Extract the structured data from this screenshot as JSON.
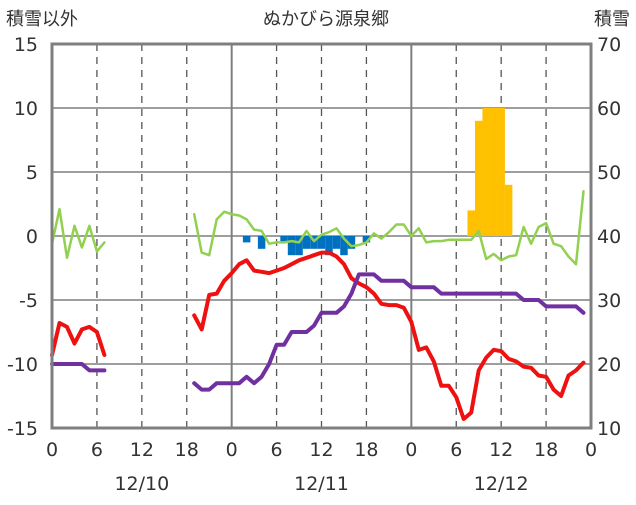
{
  "chart_data": {
    "type": "line",
    "title": "ぬかびら源泉郷",
    "ylabel_left": "積雪以外",
    "ylabel_right": "積雪",
    "ylim_left": [
      -15,
      15
    ],
    "ylim_right": [
      10,
      70
    ],
    "yticks_left": [
      "-15",
      "-10",
      "-5",
      "0",
      "5",
      "10",
      "15"
    ],
    "yticks_right": [
      "10",
      "20",
      "30",
      "40",
      "50",
      "60",
      "70"
    ],
    "xlim": [
      0,
      72
    ],
    "xtick_labels": [
      "0",
      "6",
      "12",
      "18",
      "0",
      "6",
      "12",
      "18",
      "0",
      "6",
      "12",
      "18",
      "0"
    ],
    "date_labels": [
      "12/10",
      "12/11",
      "12/12"
    ],
    "colors": {
      "temperature": "#ee1111",
      "snow_depth": "#7030a0",
      "wind": "#92d050",
      "precipitation": "#ffc000",
      "negative_bars": "#0070c0"
    },
    "series": [
      {
        "key": "temperature",
        "axis": "left",
        "segments": [
          [
            [
              0,
              -9.3
            ],
            [
              1,
              -6.8
            ],
            [
              2,
              -7.1
            ],
            [
              3,
              -8.4
            ],
            [
              4,
              -7.3
            ],
            [
              5,
              -7.1
            ],
            [
              6,
              -7.5
            ],
            [
              7,
              -9.3
            ]
          ],
          [
            [
              19,
              -6.2
            ],
            [
              20,
              -7.3
            ],
            [
              21,
              -4.6
            ],
            [
              22,
              -4.5
            ],
            [
              23,
              -3.5
            ],
            [
              24,
              -2.9
            ],
            [
              25,
              -2.2
            ],
            [
              26,
              -1.9
            ],
            [
              27,
              -2.7
            ],
            [
              28,
              -2.8
            ],
            [
              29,
              -2.9
            ],
            [
              30,
              -2.7
            ],
            [
              31,
              -2.5
            ],
            [
              32,
              -2.2
            ],
            [
              33,
              -1.9
            ],
            [
              34,
              -1.7
            ],
            [
              35,
              -1.5
            ],
            [
              36,
              -1.3
            ],
            [
              37,
              -1.3
            ],
            [
              38,
              -1.6
            ],
            [
              39,
              -2.2
            ],
            [
              40,
              -3.3
            ],
            [
              41,
              -3.7
            ],
            [
              42,
              -4.0
            ],
            [
              43,
              -4.5
            ],
            [
              44,
              -5.3
            ],
            [
              45,
              -5.4
            ],
            [
              46,
              -5.4
            ],
            [
              47,
              -5.6
            ],
            [
              48,
              -6.7
            ],
            [
              49,
              -8.9
            ],
            [
              50,
              -8.7
            ],
            [
              51,
              -9.8
            ],
            [
              52,
              -11.7
            ],
            [
              53,
              -11.7
            ],
            [
              54,
              -12.6
            ],
            [
              55,
              -14.3
            ],
            [
              56,
              -13.8
            ],
            [
              57,
              -10.5
            ],
            [
              58,
              -9.5
            ],
            [
              59,
              -8.9
            ],
            [
              60,
              -9.0
            ],
            [
              61,
              -9.6
            ],
            [
              62,
              -9.8
            ],
            [
              63,
              -10.2
            ],
            [
              64,
              -10.3
            ],
            [
              65,
              -10.9
            ],
            [
              66,
              -11.0
            ],
            [
              67,
              -12.0
            ],
            [
              68,
              -12.5
            ],
            [
              69,
              -10.9
            ],
            [
              70,
              -10.5
            ],
            [
              71,
              -9.9
            ]
          ]
        ]
      },
      {
        "key": "snow_depth",
        "axis": "right",
        "segments": [
          [
            [
              0,
              20
            ],
            [
              1,
              20
            ],
            [
              2,
              20
            ],
            [
              3,
              20
            ],
            [
              4,
              20
            ],
            [
              5,
              19
            ],
            [
              6,
              19
            ],
            [
              7,
              19
            ]
          ],
          [
            [
              19,
              17
            ],
            [
              20,
              16
            ],
            [
              21,
              16
            ],
            [
              22,
              17
            ],
            [
              23,
              17
            ],
            [
              24,
              17
            ],
            [
              25,
              17
            ],
            [
              26,
              18
            ],
            [
              27,
              17
            ],
            [
              28,
              18
            ],
            [
              29,
              20
            ],
            [
              30,
              23
            ],
            [
              31,
              23
            ],
            [
              32,
              25
            ],
            [
              33,
              25
            ],
            [
              34,
              25
            ],
            [
              35,
              26
            ],
            [
              36,
              28
            ],
            [
              37,
              28
            ],
            [
              38,
              28
            ],
            [
              39,
              29
            ],
            [
              40,
              31
            ],
            [
              41,
              34
            ],
            [
              42,
              34
            ],
            [
              43,
              34
            ],
            [
              44,
              33
            ],
            [
              45,
              33
            ],
            [
              46,
              33
            ],
            [
              47,
              33
            ],
            [
              48,
              32
            ],
            [
              49,
              32
            ],
            [
              50,
              32
            ],
            [
              51,
              32
            ],
            [
              52,
              31
            ],
            [
              53,
              31
            ],
            [
              54,
              31
            ],
            [
              55,
              31
            ],
            [
              56,
              31
            ],
            [
              57,
              31
            ],
            [
              58,
              31
            ],
            [
              59,
              31
            ],
            [
              60,
              31
            ],
            [
              61,
              31
            ],
            [
              62,
              31
            ],
            [
              63,
              30
            ],
            [
              64,
              30
            ],
            [
              65,
              30
            ],
            [
              66,
              29
            ],
            [
              67,
              29
            ],
            [
              68,
              29
            ],
            [
              69,
              29
            ],
            [
              70,
              29
            ],
            [
              71,
              28
            ]
          ]
        ]
      },
      {
        "key": "wind",
        "axis": "left",
        "segments": [
          [
            [
              0,
              -0.6
            ],
            [
              1,
              2.1
            ],
            [
              2,
              -1.7
            ],
            [
              3,
              0.8
            ],
            [
              4,
              -0.9
            ],
            [
              5,
              0.8
            ],
            [
              6,
              -1.2
            ],
            [
              7,
              -0.5
            ]
          ],
          [
            [
              19,
              1.7
            ],
            [
              20,
              -1.3
            ],
            [
              21,
              -1.5
            ],
            [
              22,
              1.3
            ],
            [
              23,
              1.9
            ],
            [
              24,
              1.7
            ],
            [
              25,
              1.6
            ],
            [
              26,
              1.3
            ],
            [
              27,
              0.5
            ],
            [
              28,
              0.4
            ],
            [
              29,
              -0.6
            ],
            [
              30,
              -0.5
            ],
            [
              31,
              -0.5
            ],
            [
              32,
              -0.4
            ],
            [
              33,
              -0.5
            ],
            [
              34,
              0.4
            ],
            [
              35,
              -0.4
            ],
            [
              36,
              0.1
            ],
            [
              37,
              0.3
            ],
            [
              38,
              0.6
            ],
            [
              39,
              -0.2
            ],
            [
              40,
              -0.8
            ],
            [
              41,
              -0.7
            ],
            [
              42,
              -0.5
            ],
            [
              43,
              0.2
            ],
            [
              44,
              -0.2
            ],
            [
              45,
              0.3
            ],
            [
              46,
              0.9
            ],
            [
              47,
              0.9
            ],
            [
              48,
              0.0
            ],
            [
              49,
              0.6
            ],
            [
              50,
              -0.5
            ],
            [
              51,
              -0.4
            ],
            [
              52,
              -0.4
            ],
            [
              53,
              -0.3
            ],
            [
              54,
              -0.3
            ],
            [
              55,
              -0.3
            ],
            [
              56,
              -0.3
            ],
            [
              57,
              0.4
            ],
            [
              58,
              -1.8
            ],
            [
              59,
              -1.4
            ],
            [
              60,
              -1.9
            ],
            [
              61,
              -1.6
            ],
            [
              62,
              -1.5
            ],
            [
              63,
              0.7
            ],
            [
              64,
              -0.6
            ],
            [
              65,
              0.7
            ],
            [
              66,
              1.0
            ],
            [
              67,
              -0.6
            ],
            [
              68,
              -0.8
            ],
            [
              69,
              -1.6
            ],
            [
              70,
              -2.2
            ],
            [
              71,
              3.5
            ]
          ]
        ]
      },
      {
        "key": "precipitation",
        "axis": "left",
        "kind": "bar",
        "bars": [
          [
            56,
            2.0
          ],
          [
            57,
            9.0
          ],
          [
            58,
            10.0
          ],
          [
            59,
            10.0
          ],
          [
            60,
            10.0
          ],
          [
            61,
            4.0
          ]
        ]
      },
      {
        "key": "negative_bars",
        "axis": "left",
        "kind": "bar",
        "bars": [
          [
            26,
            -0.5
          ],
          [
            28,
            -1.0
          ],
          [
            31,
            -0.5
          ],
          [
            32,
            -1.5
          ],
          [
            33,
            -1.5
          ],
          [
            34,
            -1.0
          ],
          [
            35,
            -1.0
          ],
          [
            36,
            -1.0
          ],
          [
            37,
            -1.5
          ],
          [
            38,
            -1.0
          ],
          [
            39,
            -1.5
          ],
          [
            40,
            -1.0
          ],
          [
            42,
            -0.5
          ]
        ]
      }
    ]
  }
}
